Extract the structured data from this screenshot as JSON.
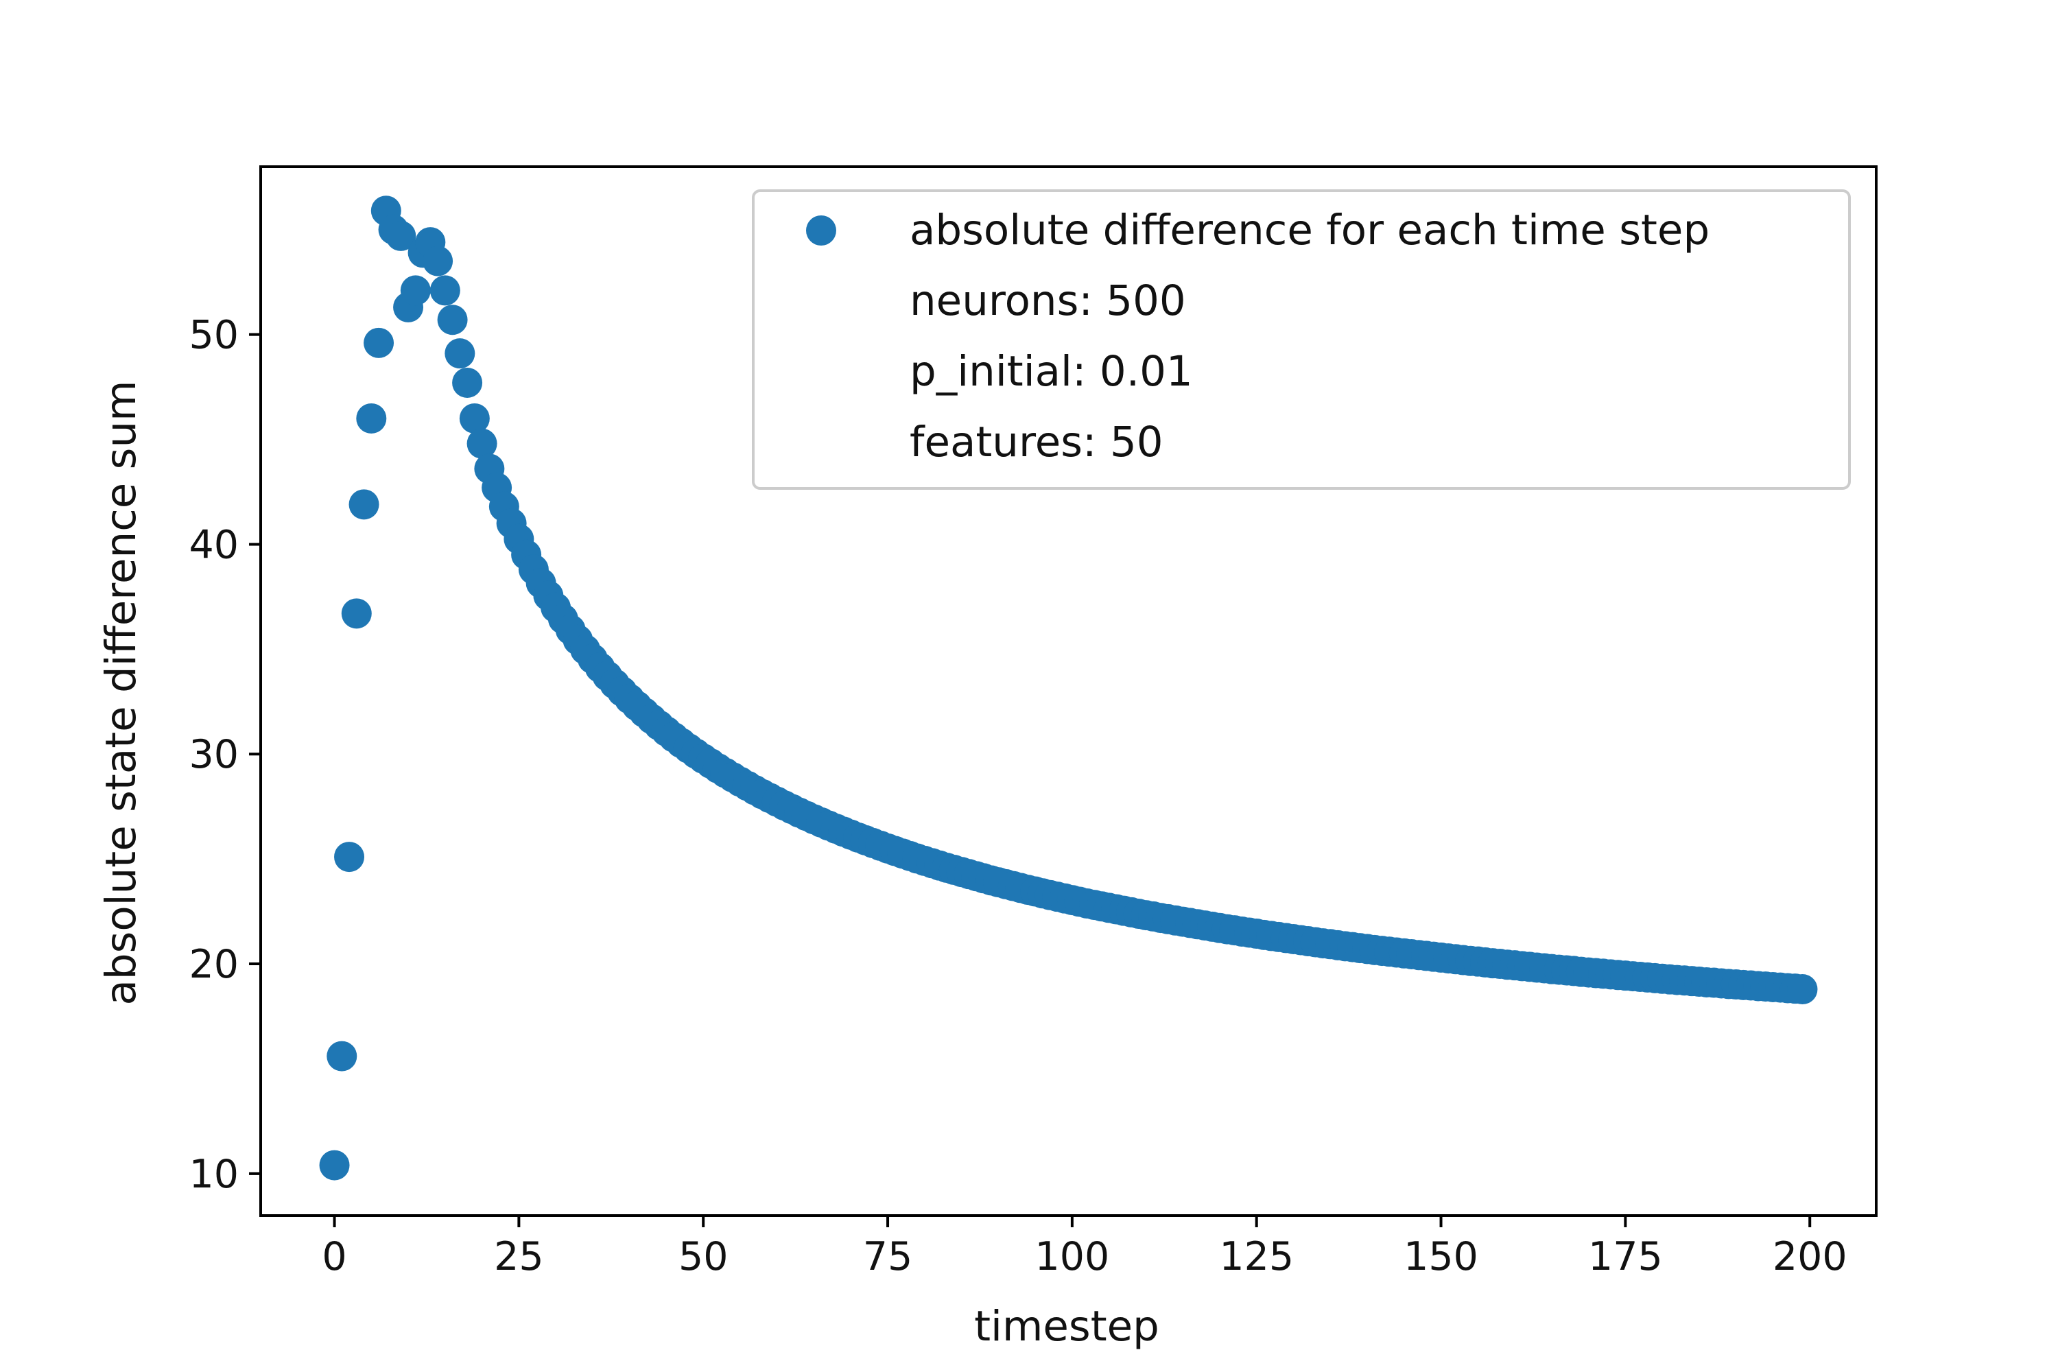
{
  "chart_data": {
    "type": "scatter",
    "title": "",
    "xlabel": "timestep",
    "ylabel": "absolute state difference sum",
    "xlim": [
      -10,
      209
    ],
    "ylim": [
      8,
      58
    ],
    "xticks": [
      0,
      25,
      50,
      75,
      100,
      125,
      150,
      175,
      200
    ],
    "yticks": [
      10,
      20,
      30,
      40,
      50
    ],
    "grid": false,
    "legend_position": "top-right",
    "series": [
      {
        "name": "absolute difference for each time step",
        "color": "#1f77b4",
        "x": [
          0,
          1,
          2,
          3,
          4,
          5,
          6,
          7,
          8,
          9,
          10,
          11,
          12,
          13,
          14,
          15,
          16,
          17,
          18,
          19,
          20,
          21,
          22,
          23,
          24,
          25,
          26,
          27,
          28,
          29,
          30,
          31,
          32,
          33,
          34,
          35,
          36,
          37,
          38,
          39,
          40,
          41,
          42,
          43,
          44,
          45,
          46,
          47,
          48,
          49,
          50,
          51,
          52,
          53,
          54,
          55,
          56,
          57,
          58,
          59,
          60,
          61,
          62,
          63,
          64,
          65,
          66,
          67,
          68,
          69,
          70,
          71,
          72,
          73,
          74,
          75,
          76,
          77,
          78,
          79,
          80,
          81,
          82,
          83,
          84,
          85,
          86,
          87,
          88,
          89,
          90,
          91,
          92,
          93,
          94,
          95,
          96,
          97,
          98,
          99,
          100,
          101,
          102,
          103,
          104,
          105,
          106,
          107,
          108,
          109,
          110,
          111,
          112,
          113,
          114,
          115,
          116,
          117,
          118,
          119,
          120,
          121,
          122,
          123,
          124,
          125,
          126,
          127,
          128,
          129,
          130,
          131,
          132,
          133,
          134,
          135,
          136,
          137,
          138,
          139,
          140,
          141,
          142,
          143,
          144,
          145,
          146,
          147,
          148,
          149,
          150,
          151,
          152,
          153,
          154,
          155,
          156,
          157,
          158,
          159,
          160,
          161,
          162,
          163,
          164,
          165,
          166,
          167,
          168,
          169,
          170,
          171,
          172,
          173,
          174,
          175,
          176,
          177,
          178,
          179,
          180,
          181,
          182,
          183,
          184,
          185,
          186,
          187,
          188,
          189,
          190,
          191,
          192,
          193,
          194,
          195,
          196,
          197,
          198,
          199
        ],
        "y": [
          10.4,
          15.6,
          25.1,
          36.7,
          41.9,
          46.0,
          49.6,
          55.9,
          55.0,
          54.7,
          51.3,
          52.1,
          53.9,
          54.4,
          53.5,
          52.1,
          50.7,
          49.1,
          47.7,
          46.0,
          44.8,
          43.6,
          42.7,
          41.8,
          41.0,
          40.25,
          39.5,
          38.8,
          38.15,
          37.55,
          36.98,
          36.44,
          35.93,
          35.44,
          34.98,
          34.54,
          34.12,
          33.72,
          33.34,
          32.98,
          32.63,
          32.3,
          31.98,
          31.67,
          31.37,
          31.08,
          30.8,
          30.53,
          30.27,
          30.02,
          29.78,
          29.55,
          29.32,
          29.1,
          28.89,
          28.68,
          28.48,
          28.28,
          28.09,
          27.91,
          27.73,
          27.55,
          27.38,
          27.21,
          27.05,
          26.89,
          26.74,
          26.59,
          26.44,
          26.3,
          26.16,
          26.02,
          25.89,
          25.76,
          25.63,
          25.5,
          25.38,
          25.26,
          25.14,
          25.02,
          24.91,
          24.8,
          24.69,
          24.58,
          24.48,
          24.38,
          24.28,
          24.18,
          24.08,
          23.98,
          23.89,
          23.8,
          23.71,
          23.62,
          23.53,
          23.45,
          23.36,
          23.28,
          23.2,
          23.12,
          23.04,
          22.96,
          22.88,
          22.81,
          22.74,
          22.67,
          22.6,
          22.53,
          22.46,
          22.39,
          22.32,
          22.26,
          22.19,
          22.13,
          22.07,
          22.01,
          21.95,
          21.89,
          21.83,
          21.77,
          21.71,
          21.65,
          21.6,
          21.54,
          21.49,
          21.44,
          21.38,
          21.33,
          21.28,
          21.23,
          21.18,
          21.13,
          21.08,
          21.03,
          20.98,
          20.94,
          20.89,
          20.84,
          20.8,
          20.75,
          20.71,
          20.66,
          20.62,
          20.58,
          20.54,
          20.5,
          20.46,
          20.42,
          20.38,
          20.34,
          20.3,
          20.26,
          20.22,
          20.18,
          20.14,
          20.11,
          20.07,
          20.03,
          20.0,
          19.96,
          19.93,
          19.89,
          19.86,
          19.82,
          19.79,
          19.75,
          19.72,
          19.69,
          19.66,
          19.62,
          19.59,
          19.56,
          19.53,
          19.5,
          19.47,
          19.44,
          19.41,
          19.38,
          19.35,
          19.32,
          19.29,
          19.26,
          19.23,
          19.21,
          19.18,
          19.15,
          19.12,
          19.1,
          19.07,
          19.04,
          19.02,
          18.99,
          18.97,
          18.94,
          18.92,
          18.89,
          18.87,
          18.84,
          18.82,
          18.79
        ]
      }
    ],
    "legend_entries": [
      "absolute difference for each time step",
      "neurons: 500",
      "p_initial: 0.01",
      "features: 50"
    ]
  }
}
